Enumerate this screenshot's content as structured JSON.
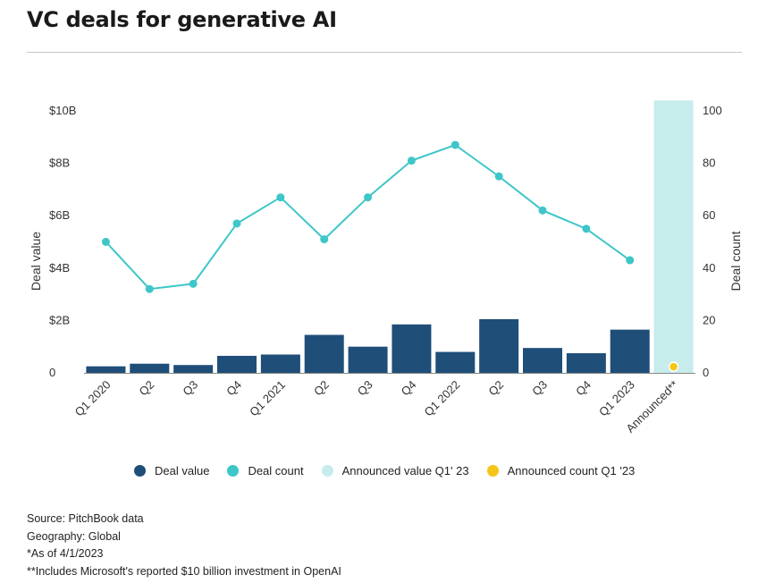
{
  "title": "VC deals for generative AI",
  "legend": [
    {
      "label": "Deal value",
      "color": "#1f4e79"
    },
    {
      "label": "Deal count",
      "color": "#3ec6c9"
    },
    {
      "label": "Announced value Q1' 23",
      "color": "#c6ecec"
    },
    {
      "label": "Announced count Q1 '23",
      "color": "#f5c518"
    }
  ],
  "notes": [
    "Source: PitchBook data",
    "Geography: Global",
    "*As of 4/1/2023",
    "**Includes Microsoft's reported $10 billion investment in OpenAI"
  ],
  "chart_data": {
    "type": "bar",
    "categories": [
      "Q1 2020",
      "Q2",
      "Q3",
      "Q4",
      "Q1 2021",
      "Q2",
      "Q3",
      "Q4",
      "Q1 2022",
      "Q2",
      "Q3",
      "Q4",
      "Q1 2023",
      "Announced**"
    ],
    "left_axis": {
      "label": "Deal value",
      "ticks": [
        "0",
        "$2B",
        "$4B",
        "$6B",
        "$8B",
        "$10B"
      ],
      "tick_values": [
        0,
        2,
        4,
        6,
        8,
        10
      ],
      "range": [
        0,
        10
      ],
      "unit": "$B"
    },
    "right_axis": {
      "label": "Deal count",
      "ticks": [
        "0",
        "20",
        "40",
        "60",
        "80",
        "100"
      ],
      "tick_values": [
        0,
        20,
        40,
        60,
        80,
        100
      ],
      "range": [
        0,
        100
      ]
    },
    "series": [
      {
        "name": "Deal value",
        "type": "bar",
        "axis": "left",
        "color": "#1f4e79",
        "values": [
          0.25,
          0.35,
          0.3,
          0.65,
          0.7,
          1.45,
          1.0,
          1.85,
          0.8,
          2.05,
          0.95,
          0.75,
          1.65,
          null
        ]
      },
      {
        "name": "Deal count",
        "type": "line",
        "axis": "right",
        "color": "#3ec6c9",
        "values": [
          50,
          32,
          34,
          57,
          67,
          51,
          67,
          81,
          87,
          75,
          62,
          55,
          43,
          null
        ]
      },
      {
        "name": "Announced value Q1' 23",
        "type": "bar",
        "axis": "left",
        "color": "#c6ecec",
        "values": [
          null,
          null,
          null,
          null,
          null,
          null,
          null,
          null,
          null,
          null,
          null,
          null,
          null,
          10.4
        ]
      },
      {
        "name": "Announced count Q1 '23",
        "type": "point",
        "axis": "right",
        "color": "#f5c518",
        "values": [
          null,
          null,
          null,
          null,
          null,
          null,
          null,
          null,
          null,
          null,
          null,
          null,
          null,
          2
        ]
      }
    ],
    "grid": false,
    "legend_position": "bottom"
  }
}
